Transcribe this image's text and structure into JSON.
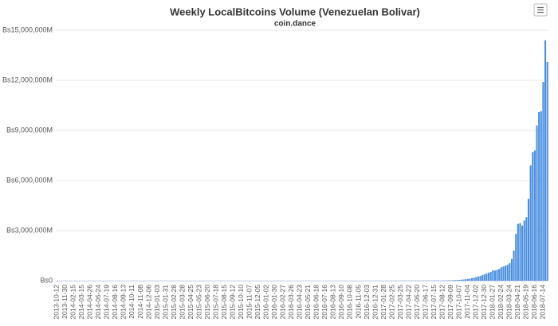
{
  "chart_data": {
    "type": "bar",
    "title": "Weekly LocalBitcoins Volume (Venezuelan Bolivar)",
    "subtitle": "coin.dance",
    "color": "#4a8fe0",
    "grid": true,
    "ylim": [
      0,
      15000000
    ],
    "yticks": [
      {
        "value": 0,
        "label": "Bs0"
      },
      {
        "value": 3000000,
        "label": "Bs3,000,000M"
      },
      {
        "value": 6000000,
        "label": "Bs6,000,000M"
      },
      {
        "value": 9000000,
        "label": "Bs9,000,000M"
      },
      {
        "value": 12000000,
        "label": "Bs12,000,000M"
      },
      {
        "value": 15000000,
        "label": "Bs15,000,000M"
      }
    ],
    "categories": [
      "2013-10-12",
      null,
      null,
      null,
      "2013-11-30",
      null,
      null,
      null,
      "2014-02-15",
      null,
      null,
      null,
      "2014-03-15",
      null,
      null,
      null,
      "2014-04-26",
      null,
      null,
      null,
      "2014-05-24",
      null,
      null,
      null,
      "2014-07-19",
      null,
      null,
      null,
      "2014-08-16",
      null,
      null,
      null,
      "2014-09-13",
      null,
      null,
      null,
      "2014-10-11",
      null,
      null,
      null,
      "2014-11-08",
      null,
      null,
      null,
      "2014-12-06",
      null,
      null,
      null,
      "2015-01-03",
      null,
      null,
      null,
      "2015-01-31",
      null,
      null,
      null,
      "2015-02-28",
      null,
      null,
      null,
      "2015-03-28",
      null,
      null,
      null,
      "2015-04-25",
      null,
      null,
      null,
      "2015-05-23",
      null,
      null,
      null,
      "2015-06-20",
      null,
      null,
      null,
      "2015-07-18",
      null,
      null,
      null,
      "2015-08-15",
      null,
      null,
      null,
      "2015-09-12",
      null,
      null,
      null,
      "2015-10-10",
      null,
      null,
      null,
      "2015-11-07",
      null,
      null,
      null,
      "2015-12-05",
      null,
      null,
      null,
      "2016-01-02",
      null,
      null,
      null,
      "2016-01-30",
      null,
      null,
      null,
      "2016-02-27",
      null,
      null,
      null,
      "2016-03-26",
      null,
      null,
      null,
      "2016-04-23",
      null,
      null,
      null,
      "2016-05-21",
      null,
      null,
      null,
      "2016-06-18",
      null,
      null,
      null,
      "2016-07-16",
      null,
      null,
      null,
      "2016-08-13",
      null,
      null,
      null,
      "2016-09-10",
      null,
      null,
      null,
      "2016-10-08",
      null,
      null,
      null,
      "2016-11-05",
      null,
      null,
      null,
      "2016-12-03",
      null,
      null,
      null,
      "2016-12-31",
      null,
      null,
      null,
      "2017-01-28",
      null,
      null,
      null,
      "2017-02-25",
      null,
      null,
      null,
      "2017-03-25",
      null,
      null,
      null,
      "2017-04-22",
      null,
      null,
      null,
      "2017-05-20",
      null,
      null,
      null,
      "2017-06-17",
      null,
      null,
      null,
      "2017-07-15",
      null,
      null,
      null,
      "2017-08-12",
      null,
      null,
      null,
      "2017-09-09",
      null,
      null,
      null,
      "2017-10-07",
      null,
      null,
      null,
      "2017-11-04",
      null,
      null,
      null,
      "2017-12-02",
      null,
      null,
      null,
      "2017-12-30",
      null,
      null,
      null,
      "2018-01-27",
      null,
      null,
      null,
      "2018-02-24",
      null,
      null,
      null,
      "2018-03-24",
      null,
      null,
      null,
      "2018-04-21",
      null,
      null,
      null,
      "2018-05-19",
      null,
      null,
      null,
      "2018-06-16",
      null,
      null,
      null,
      "2018-07-14",
      null,
      null
    ],
    "values": [
      0,
      0,
      0,
      0,
      0,
      0,
      0,
      0,
      0,
      0,
      0,
      0,
      0,
      0,
      0,
      0,
      0,
      0,
      0,
      0,
      0,
      0,
      0,
      0,
      0,
      0,
      0,
      0,
      0,
      0,
      0,
      0,
      0,
      0,
      0,
      0,
      0,
      0,
      0,
      0,
      0,
      0,
      0,
      0,
      0,
      0,
      0,
      0,
      0,
      0,
      0,
      0,
      0,
      0,
      0,
      0,
      0,
      0,
      0,
      0,
      0,
      0,
      0,
      0,
      0,
      0,
      0,
      0,
      0,
      0,
      0,
      0,
      0,
      0,
      0,
      0,
      0,
      0,
      0,
      0,
      0,
      0,
      0,
      0,
      0,
      0,
      0,
      0,
      0,
      0,
      0,
      0,
      0,
      0,
      0,
      0,
      0,
      0,
      0,
      0,
      0,
      0,
      0,
      0,
      0,
      0,
      0,
      0,
      0,
      0,
      0,
      0,
      0,
      0,
      0,
      0,
      0,
      0,
      0,
      0,
      300,
      300,
      400,
      400,
      500,
      500,
      600,
      600,
      700,
      700,
      800,
      800,
      900,
      900,
      1000,
      1000,
      1100,
      1200,
      1300,
      1400,
      1500,
      1600,
      1700,
      1800,
      1900,
      2000,
      2200,
      2400,
      2600,
      2800,
      3000,
      3200,
      3400,
      3600,
      3800,
      4000,
      4200,
      4400,
      4600,
      4800,
      5000,
      5300,
      5600,
      5900,
      6200,
      6500,
      6800,
      7100,
      7400,
      7700,
      8000,
      8300,
      8600,
      8900,
      9200,
      9500,
      9800,
      10100,
      10400,
      10700,
      11000,
      11300,
      11600,
      11800,
      12000,
      15000,
      18000,
      21000,
      25000,
      30000,
      36000,
      42000,
      50000,
      60000,
      70000,
      85000,
      100000,
      120000,
      150000,
      180000,
      210000,
      250000,
      290000,
      330000,
      380000,
      440000,
      480000,
      520000,
      620000,
      600000,
      650000,
      700000,
      800000,
      850000,
      900000,
      950000,
      1050000,
      1300000,
      1800000,
      2800000,
      3400000,
      3450000,
      3300000,
      3600000,
      3800000,
      4900000,
      6900000,
      7700000,
      7800000,
      9300000,
      10100000,
      10150000,
      11900000,
      14400000,
      13100000
    ]
  }
}
